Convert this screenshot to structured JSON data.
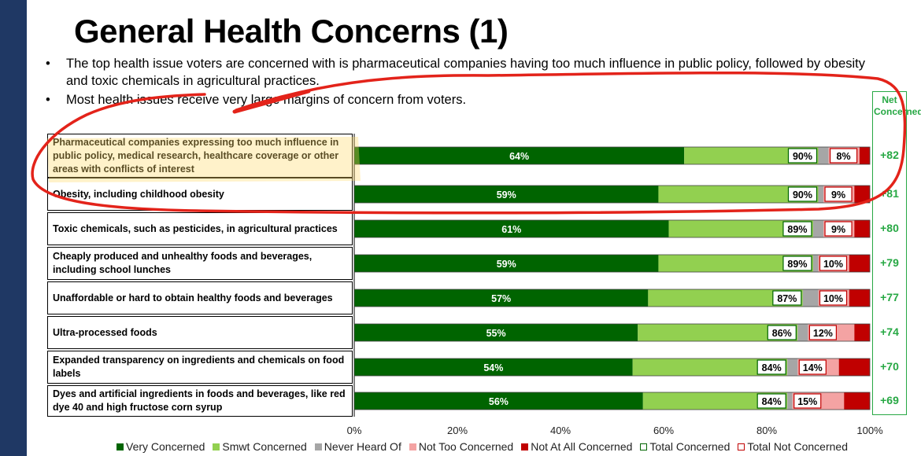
{
  "slide": {
    "title": "General Health Concerns (1)",
    "bullets": [
      "The top health issue voters are concerned with is pharmaceutical companies having too much influence in public policy, followed by obesity and toxic chemicals in agricultural practices.",
      "Most health issues receive very large margins of concern from voters."
    ],
    "bullet_glyph": "•",
    "net_header": "Net Concerned",
    "colors": {
      "very": "#006400",
      "smwt": "#92d050",
      "never": "#a6a6a6",
      "nottoo": "#f4a3a3",
      "notatall": "#c00000",
      "net": "#27a844",
      "sidebar": "#1f3864",
      "annotation_red": "#e3231a",
      "highlight": "#ffd966"
    }
  },
  "chart_data": {
    "type": "bar",
    "orientation": "horizontal",
    "stacked": true,
    "xlim": [
      0,
      100
    ],
    "xticks": [
      "0%",
      "20%",
      "40%",
      "60%",
      "80%",
      "100%"
    ],
    "categories": [
      "Pharmaceutical companies expressing too much influence in public policy, medical research, healthcare coverage or other areas with conflicts of interest",
      "Obesity, including childhood obesity",
      "Toxic chemicals, such as pesticides, in agricultural practices",
      "Cheaply produced and unhealthy foods and beverages, including school lunches",
      "Unaffordable or hard to obtain healthy foods and beverages",
      "Ultra-processed foods",
      "Expanded transparency on ingredients and chemicals on food labels",
      "Dyes and artificial ingredients in foods and beverages, like red dye 40 and high fructose corn syrup"
    ],
    "series": [
      {
        "name": "Very Concerned",
        "values": [
          64,
          59,
          61,
          59,
          57,
          55,
          54,
          56
        ]
      },
      {
        "name": "Smwt Concerned",
        "values": [
          26,
          31,
          28,
          30,
          30,
          31,
          30,
          28
        ]
      },
      {
        "name": "Never Heard Of",
        "values": [
          2,
          1,
          2,
          1,
          3,
          2,
          2,
          1
        ]
      },
      {
        "name": "Not Too Concerned",
        "values": [
          6,
          6,
          6,
          6,
          6,
          9,
          8,
          10
        ]
      },
      {
        "name": "Not At All Concerned",
        "values": [
          2,
          3,
          3,
          4,
          4,
          3,
          6,
          5
        ]
      }
    ],
    "labels": {
      "very": [
        "64%",
        "59%",
        "61%",
        "59%",
        "57%",
        "55%",
        "54%",
        "56%"
      ],
      "total_concerned": [
        "90%",
        "90%",
        "89%",
        "89%",
        "87%",
        "86%",
        "84%",
        "84%"
      ],
      "total_not_concerned": [
        "8%",
        "9%",
        "9%",
        "10%",
        "10%",
        "12%",
        "14%",
        "15%"
      ],
      "net": [
        "+82",
        "+81",
        "+80",
        "+79",
        "+77",
        "+74",
        "+70",
        "+69"
      ]
    },
    "legend": {
      "position": "bottom",
      "items": [
        "Very Concerned",
        "Smwt Concerned",
        "Never Heard Of",
        "Not Too Concerned",
        "Not At All Concerned",
        "Total Concerned",
        "Total Not Concerned"
      ],
      "markers": [
        "■",
        "■",
        "■",
        "■",
        "■",
        "□",
        "□"
      ]
    },
    "grid": false
  }
}
